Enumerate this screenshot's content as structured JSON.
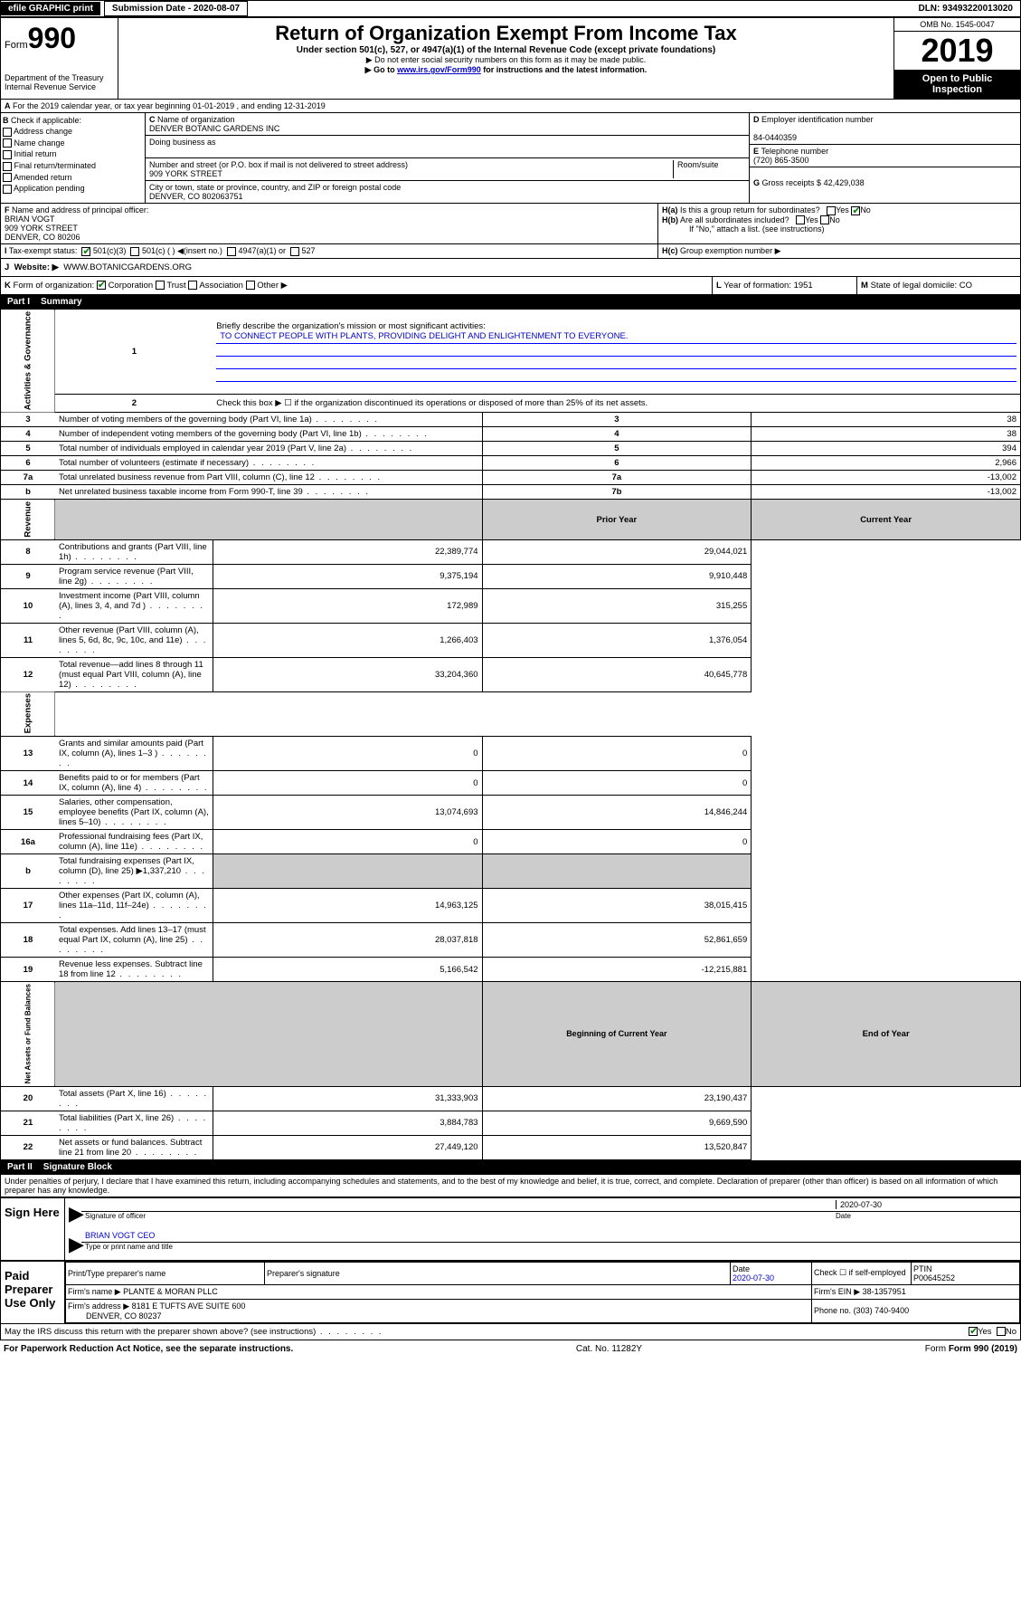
{
  "topbar": {
    "efile": "efile GRAPHIC print",
    "submission_label": "Submission Date - 2020-08-07",
    "dln": "DLN: 93493220013020"
  },
  "header": {
    "form_label": "Form",
    "form_num": "990",
    "dept": "Department of the Treasury Internal Revenue Service",
    "title": "Return of Organization Exempt From Income Tax",
    "subtitle": "Under section 501(c), 527, or 4947(a)(1) of the Internal Revenue Code (except private foundations)",
    "note1": "▶ Do not enter social security numbers on this form as it may be made public.",
    "note2_pre": "▶ Go to ",
    "note2_link": "www.irs.gov/Form990",
    "note2_post": " for instructions and the latest information.",
    "omb": "OMB No. 1545-0047",
    "year": "2019",
    "open": "Open to Public Inspection"
  },
  "A": {
    "text": "For the 2019 calendar year, or tax year beginning 01-01-2019   , and ending 12-31-2019"
  },
  "B": {
    "label": "Check if applicable:",
    "items": [
      "Address change",
      "Name change",
      "Initial return",
      "Final return/terminated",
      "Amended return",
      "Application pending"
    ]
  },
  "C": {
    "name_label": "Name of organization",
    "name": "DENVER BOTANIC GARDENS INC",
    "dba_label": "Doing business as",
    "addr_label": "Number and street (or P.O. box if mail is not delivered to street address)",
    "room_label": "Room/suite",
    "addr": "909 YORK STREET",
    "city_label": "City or town, state or province, country, and ZIP or foreign postal code",
    "city": "DENVER, CO  802063751"
  },
  "D": {
    "label": "Employer identification number",
    "val": "84-0440359"
  },
  "E": {
    "label": "Telephone number",
    "val": "(720) 865-3500"
  },
  "G": {
    "label": "Gross receipts $",
    "val": "42,429,038"
  },
  "F": {
    "label": "Name and address of principal officer:",
    "name": "BRIAN VOGT",
    "addr1": "909 YORK STREET",
    "addr2": "DENVER, CO  80206"
  },
  "H": {
    "a": "Is this a group return for subordinates?",
    "b": "Are all subordinates included?",
    "b_note": "If \"No,\" attach a list. (see instructions)",
    "c": "Group exemption number ▶"
  },
  "I": {
    "label": "Tax-exempt status:",
    "opt1": "501(c)(3)",
    "opt2": "501(c) (  ) ◀(insert no.)",
    "opt3": "4947(a)(1) or",
    "opt4": "527"
  },
  "J": {
    "label": "Website: ▶",
    "val": "WWW.BOTANICGARDENS.ORG"
  },
  "K": {
    "label": "Form of organization:",
    "opts": [
      "Corporation",
      "Trust",
      "Association",
      "Other ▶"
    ]
  },
  "L": {
    "label": "Year of formation:",
    "val": "1951"
  },
  "M": {
    "label": "State of legal domicile:",
    "val": "CO"
  },
  "part1": {
    "title": "Part I",
    "sub": "Summary",
    "q1": "Briefly describe the organization's mission or most significant activities:",
    "mission": "TO CONNECT PEOPLE WITH PLANTS, PROVIDING DELIGHT AND ENLIGHTENMENT TO EVERYONE.",
    "q2": "Check this box ▶ ☐  if the organization discontinued its operations or disposed of more than 25% of its net assets.",
    "rows_gov": [
      {
        "n": "3",
        "t": "Number of voting members of the governing body (Part VI, line 1a)",
        "b": "3",
        "v": "38"
      },
      {
        "n": "4",
        "t": "Number of independent voting members of the governing body (Part VI, line 1b)",
        "b": "4",
        "v": "38"
      },
      {
        "n": "5",
        "t": "Total number of individuals employed in calendar year 2019 (Part V, line 2a)",
        "b": "5",
        "v": "394"
      },
      {
        "n": "6",
        "t": "Total number of volunteers (estimate if necessary)",
        "b": "6",
        "v": "2,966"
      },
      {
        "n": "7a",
        "t": "Total unrelated business revenue from Part VIII, column (C), line 12",
        "b": "7a",
        "v": "-13,002"
      },
      {
        "n": "b",
        "t": "Net unrelated business taxable income from Form 990-T, line 39",
        "b": "7b",
        "v": "-13,002"
      }
    ],
    "hdr_prior": "Prior Year",
    "hdr_curr": "Current Year",
    "rows_rev": [
      {
        "n": "8",
        "t": "Contributions and grants (Part VIII, line 1h)",
        "p": "22,389,774",
        "c": "29,044,021"
      },
      {
        "n": "9",
        "t": "Program service revenue (Part VIII, line 2g)",
        "p": "9,375,194",
        "c": "9,910,448"
      },
      {
        "n": "10",
        "t": "Investment income (Part VIII, column (A), lines 3, 4, and 7d )",
        "p": "172,989",
        "c": "315,255"
      },
      {
        "n": "11",
        "t": "Other revenue (Part VIII, column (A), lines 5, 6d, 8c, 9c, 10c, and 11e)",
        "p": "1,266,403",
        "c": "1,376,054"
      },
      {
        "n": "12",
        "t": "Total revenue—add lines 8 through 11 (must equal Part VIII, column (A), line 12)",
        "p": "33,204,360",
        "c": "40,645,778"
      }
    ],
    "rows_exp": [
      {
        "n": "13",
        "t": "Grants and similar amounts paid (Part IX, column (A), lines 1–3 )",
        "p": "0",
        "c": "0"
      },
      {
        "n": "14",
        "t": "Benefits paid to or for members (Part IX, column (A), line 4)",
        "p": "0",
        "c": "0"
      },
      {
        "n": "15",
        "t": "Salaries, other compensation, employee benefits (Part IX, column (A), lines 5–10)",
        "p": "13,074,693",
        "c": "14,846,244"
      },
      {
        "n": "16a",
        "t": "Professional fundraising fees (Part IX, column (A), line 11e)",
        "p": "0",
        "c": "0"
      },
      {
        "n": "b",
        "t": "Total fundraising expenses (Part IX, column (D), line 25) ▶1,337,210",
        "p": "",
        "c": "",
        "shade": true
      },
      {
        "n": "17",
        "t": "Other expenses (Part IX, column (A), lines 11a–11d, 11f–24e)",
        "p": "14,963,125",
        "c": "38,015,415"
      },
      {
        "n": "18",
        "t": "Total expenses. Add lines 13–17 (must equal Part IX, column (A), line 25)",
        "p": "28,037,818",
        "c": "52,861,659"
      },
      {
        "n": "19",
        "t": "Revenue less expenses. Subtract line 18 from line 12",
        "p": "5,166,542",
        "c": "-12,215,881"
      }
    ],
    "hdr_beg": "Beginning of Current Year",
    "hdr_end": "End of Year",
    "rows_net": [
      {
        "n": "20",
        "t": "Total assets (Part X, line 16)",
        "p": "31,333,903",
        "c": "23,190,437"
      },
      {
        "n": "21",
        "t": "Total liabilities (Part X, line 26)",
        "p": "3,884,783",
        "c": "9,669,590"
      },
      {
        "n": "22",
        "t": "Net assets or fund balances. Subtract line 21 from line 20",
        "p": "27,449,120",
        "c": "13,520,847"
      }
    ],
    "side_gov": "Activities & Governance",
    "side_rev": "Revenue",
    "side_exp": "Expenses",
    "side_net": "Net Assets or Fund Balances"
  },
  "part2": {
    "title": "Part II",
    "sub": "Signature Block",
    "decl": "Under penalties of perjury, I declare that I have examined this return, including accompanying schedules and statements, and to the best of my knowledge and belief, it is true, correct, and complete. Declaration of preparer (other than officer) is based on all information of which preparer has any knowledge.",
    "sign_here": "Sign Here",
    "sig_officer": "Signature of officer",
    "date1": "2020-07-30",
    "date_lbl": "Date",
    "officer_name": "BRIAN VOGT CEO",
    "type_name": "Type or print name and title",
    "paid": "Paid Preparer Use Only",
    "prep_name_lbl": "Print/Type preparer's name",
    "prep_sig_lbl": "Preparer's signature",
    "date2": "2020-07-30",
    "check_lbl": "Check ☐ if self-employed",
    "ptin_lbl": "PTIN",
    "ptin": "P00645252",
    "firm_name_lbl": "Firm's name   ▶",
    "firm_name": "PLANTE & MORAN PLLC",
    "firm_ein_lbl": "Firm's EIN ▶",
    "firm_ein": "38-1357951",
    "firm_addr_lbl": "Firm's address ▶",
    "firm_addr": "8181 E TUFTS AVE SUITE 600",
    "firm_city": "DENVER, CO  80237",
    "phone_lbl": "Phone no.",
    "phone": "(303) 740-9400",
    "discuss": "May the IRS discuss this return with the preparer shown above? (see instructions)"
  },
  "footer": {
    "pra": "For Paperwork Reduction Act Notice, see the separate instructions.",
    "cat": "Cat. No. 11282Y",
    "form": "Form 990 (2019)"
  }
}
